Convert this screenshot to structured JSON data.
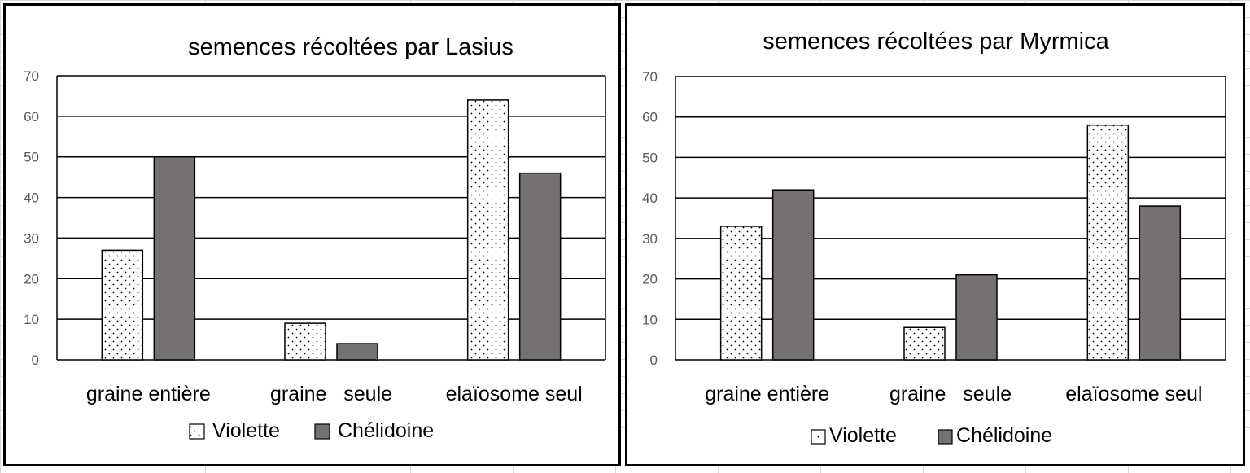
{
  "colors": {
    "violette_fill": "#ffffff",
    "violette_dots": "#000000",
    "chelidoine_fill": "#767171",
    "gridline": "#000000",
    "tick_text": "#595959"
  },
  "chart_data": [
    {
      "type": "bar",
      "title": "semences récoltées par Lasius",
      "xlabel": "",
      "ylabel": "",
      "categories": [
        "graine entière",
        "graine   seule",
        "elaïosome seul"
      ],
      "series": [
        {
          "name": "Violette",
          "values": [
            27,
            9,
            64
          ],
          "pattern": "dots"
        },
        {
          "name": "Chélidoine",
          "values": [
            50,
            4,
            46
          ],
          "pattern": "solid"
        }
      ],
      "ylim": [
        0,
        70
      ],
      "yticks": [
        "0",
        "10",
        "20",
        "30",
        "40",
        "50",
        "60",
        "70"
      ],
      "grid": true,
      "legend": "bottom",
      "legend_icon_style": "dotted-box"
    },
    {
      "type": "bar",
      "title": "semences récoltées par Myrmica",
      "xlabel": "",
      "ylabel": "",
      "categories": [
        "graine entière",
        "graine   seule",
        "elaïosome seul"
      ],
      "series": [
        {
          "name": "Violette",
          "values": [
            33,
            8,
            58
          ],
          "pattern": "dots"
        },
        {
          "name": "Chélidoine",
          "values": [
            42,
            21,
            38
          ],
          "pattern": "solid"
        }
      ],
      "ylim": [
        0,
        70
      ],
      "yticks": [
        "0",
        "10",
        "20",
        "30",
        "40",
        "50",
        "60",
        "70"
      ],
      "grid": true,
      "legend": "bottom",
      "legend_icon_style": "plain-box"
    }
  ]
}
